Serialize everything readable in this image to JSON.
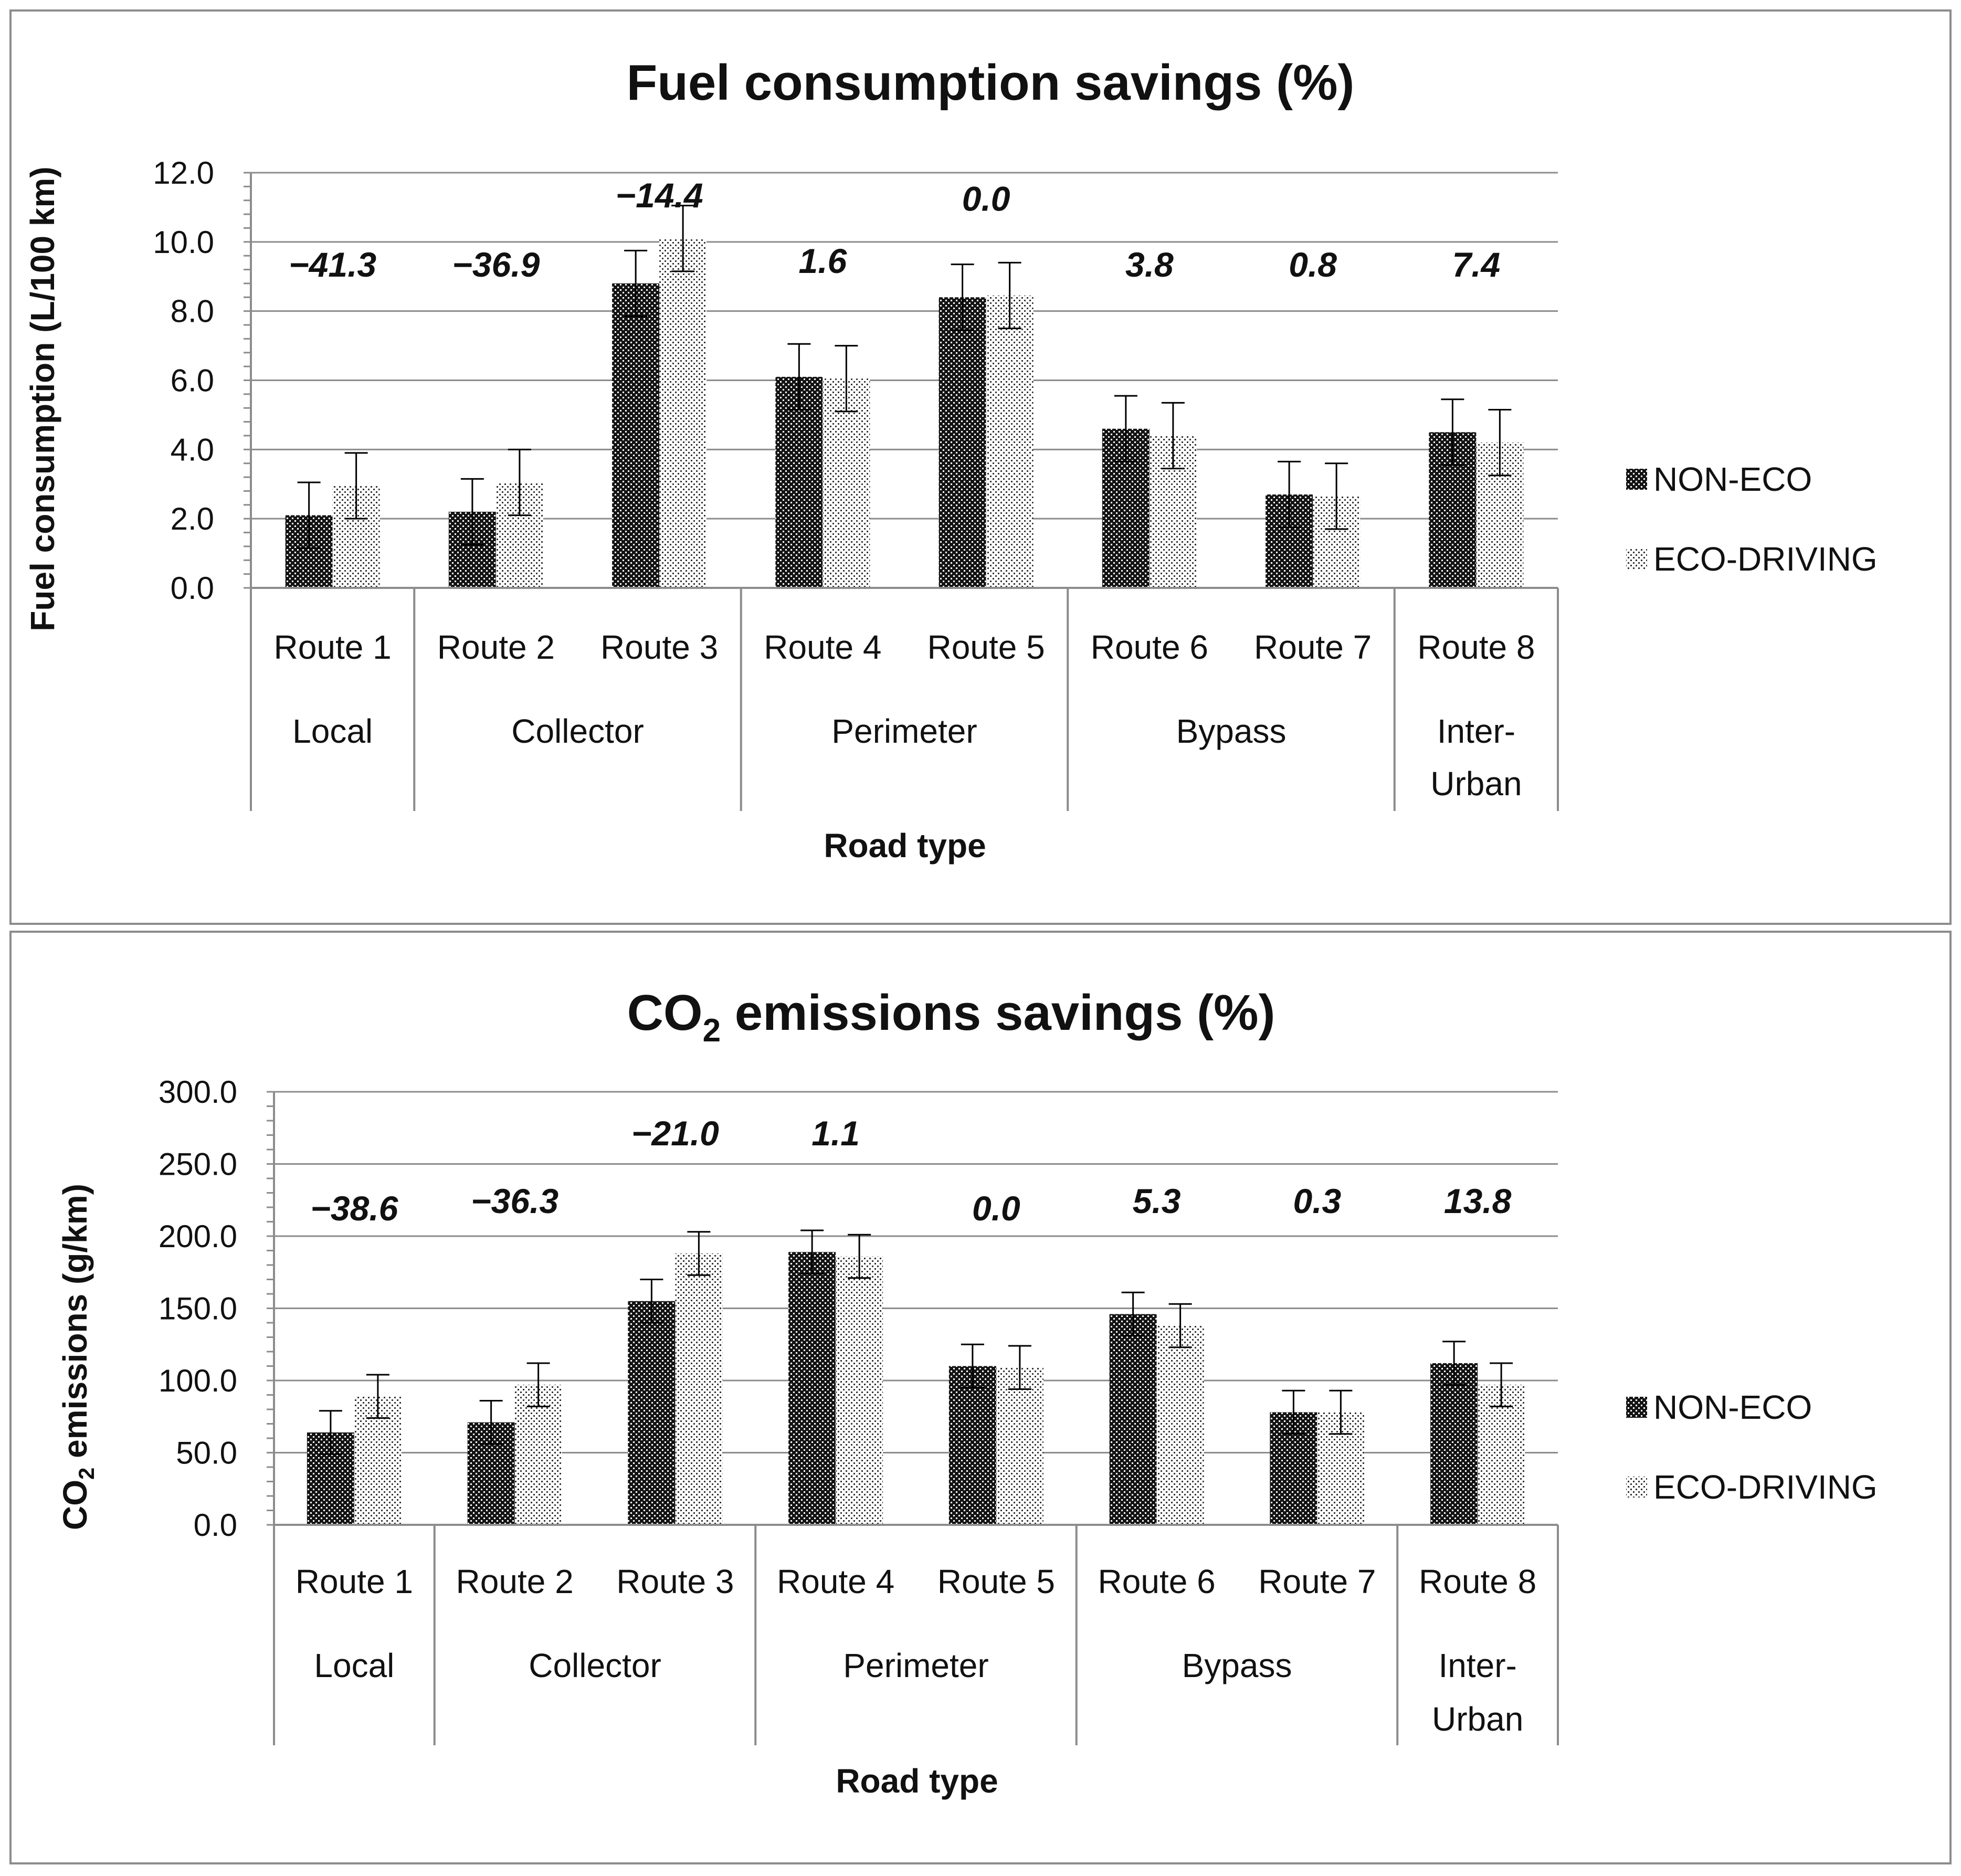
{
  "chart_data": [
    {
      "type": "bar",
      "title": "Fuel consumption savings (%)",
      "ylabel": "Fuel consumption (L/100 km)",
      "xlabel": "Road type",
      "ylim": [
        0,
        12
      ],
      "yticks": [
        "0.0",
        "2.0",
        "4.0",
        "6.0",
        "8.0",
        "10.0",
        "12.0"
      ],
      "categories": [
        "Route 1",
        "Route 2",
        "Route 3",
        "Route 4",
        "Route 5",
        "Route 6",
        "Route 7",
        "Route 8"
      ],
      "groups": [
        {
          "label": "Local",
          "size": 1
        },
        {
          "label": "Collector",
          "size": 2
        },
        {
          "label": "Perimeter",
          "size": 2
        },
        {
          "label": "Bypass",
          "size": 2
        },
        {
          "label": "Inter-\nUrban",
          "size": 1
        }
      ],
      "series": [
        {
          "name": "NON-ECO",
          "values": [
            2.1,
            2.2,
            8.8,
            6.1,
            8.4,
            4.6,
            2.7,
            4.5
          ],
          "errors": [
            0.95,
            0.95,
            0.95,
            0.95,
            0.95,
            0.95,
            0.95,
            0.95
          ]
        },
        {
          "name": "ECO-DRIVING",
          "values": [
            2.95,
            3.05,
            10.1,
            6.05,
            8.45,
            4.4,
            2.65,
            4.2
          ],
          "errors": [
            0.95,
            0.95,
            0.95,
            0.95,
            0.95,
            0.95,
            0.95,
            0.95
          ]
        }
      ],
      "annotations": [
        "−41.3",
        "−36.9",
        "−14.4",
        "1.6",
        "0.0",
        "3.8",
        "0.8",
        "7.4"
      ],
      "annotation_y": [
        9.0,
        9.0,
        11.0,
        9.1,
        10.9,
        9.0,
        9.0,
        9.0
      ],
      "legend_position": "right"
    },
    {
      "type": "bar",
      "title": "CO",
      "title_sub": "2",
      "title_rest": " emissions savings (%)",
      "ylabel": "CO",
      "ylabel_sub": "2",
      "ylabel_rest": " emissions (g/km)",
      "xlabel": "Road type",
      "ylim": [
        0,
        300
      ],
      "yticks": [
        "0.0",
        "50.0",
        "100.0",
        "150.0",
        "200.0",
        "250.0",
        "300.0"
      ],
      "categories": [
        "Route 1",
        "Route 2",
        "Route 3",
        "Route 4",
        "Route 5",
        "Route 6",
        "Route 7",
        "Route 8"
      ],
      "groups": [
        {
          "label": "Local",
          "size": 1
        },
        {
          "label": "Collector",
          "size": 2
        },
        {
          "label": "Perimeter",
          "size": 2
        },
        {
          "label": "Bypass",
          "size": 2
        },
        {
          "label": "Inter-\nUrban",
          "size": 1
        }
      ],
      "series": [
        {
          "name": "NON-ECO",
          "values": [
            64,
            71,
            155,
            189,
            110,
            146,
            78,
            112
          ],
          "errors": [
            15,
            15,
            15,
            15,
            15,
            15,
            15,
            15
          ]
        },
        {
          "name": "ECO-DRIVING",
          "values": [
            89,
            97,
            188,
            186,
            109,
            138,
            78,
            97
          ],
          "errors": [
            15,
            15,
            15,
            15,
            15,
            15,
            15,
            15
          ]
        }
      ],
      "annotations": [
        "−38.6",
        "−36.3",
        "−21.0",
        "1.1",
        "0.0",
        "5.3",
        "0.3",
        "13.8"
      ],
      "annotation_y": [
        211,
        216,
        263,
        263,
        211,
        216,
        216,
        216
      ],
      "legend_position": "right"
    }
  ]
}
